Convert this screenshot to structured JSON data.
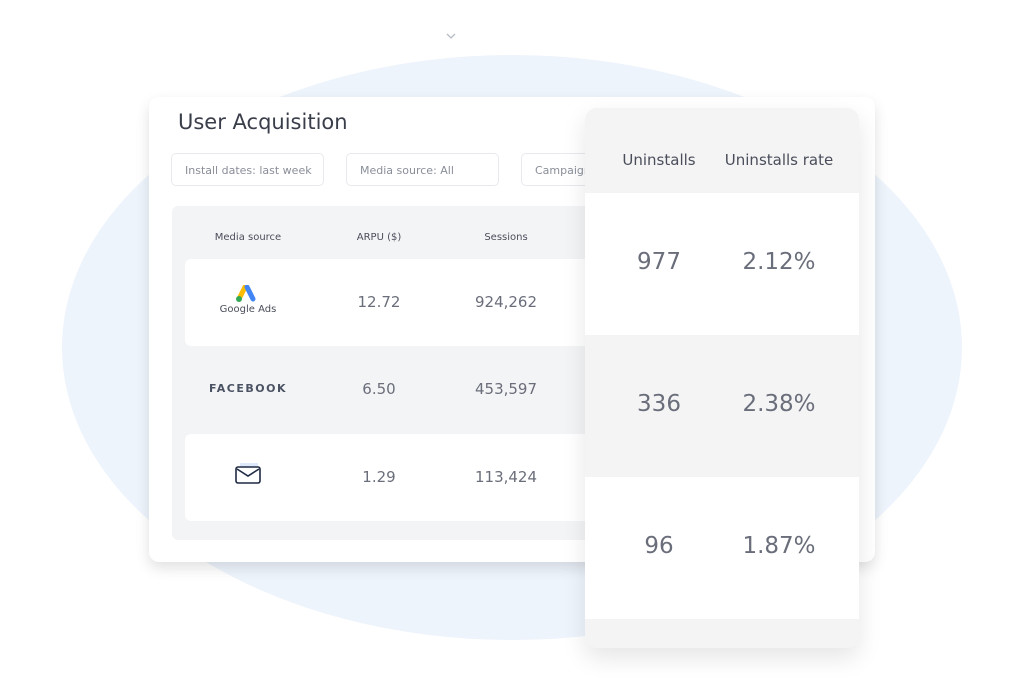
{
  "header": {
    "title": "User Acquisition"
  },
  "filters": [
    "Install dates: last week",
    "Media source: All",
    "Campaign"
  ],
  "table": {
    "columns": [
      "Media source",
      "ARPU ($)",
      "Sessions"
    ],
    "rows": [
      {
        "source": "Google Ads",
        "arpu": "12.72",
        "sessions": "924,262"
      },
      {
        "source": "FACEBOOK",
        "arpu": "6.50",
        "sessions": "453,597"
      },
      {
        "arpu": "1.29",
        "sessions": "113,424"
      }
    ]
  },
  "overlay": {
    "columns": [
      "Uninstalls",
      "Uninstalls rate"
    ],
    "rows": [
      [
        "977",
        "2.12%"
      ],
      [
        "336",
        "2.38%"
      ],
      [
        "96",
        "1.87%"
      ]
    ]
  }
}
